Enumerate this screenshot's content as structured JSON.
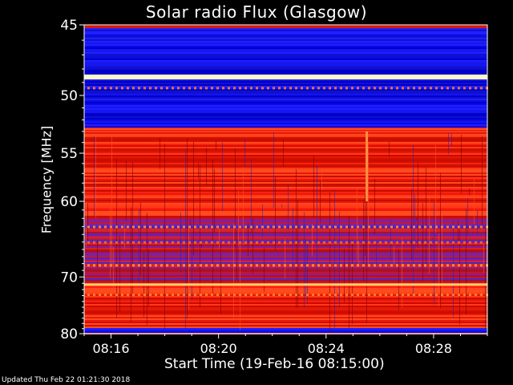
{
  "chart_data": {
    "type": "heatmap",
    "title": "Solar radio Flux (Glasgow)",
    "xlabel": "Start Time (19-Feb-16 08:15:00)",
    "ylabel": "Frequency [MHz]",
    "x_ticks": [
      "08:16",
      "08:20",
      "08:24",
      "08:28"
    ],
    "x_tick_minutes": [
      1,
      5,
      9,
      13
    ],
    "x_range_minutes": [
      0,
      15
    ],
    "y_ticks": [
      45,
      50,
      55,
      60,
      70,
      80
    ],
    "y_range": [
      45,
      80
    ],
    "y_scale": "reciprocal",
    "colormap": [
      "#000000",
      "#1010e0",
      "#4020a0",
      "#900000",
      "#e01010",
      "#ff3010",
      "#ff8020",
      "#ffff80"
    ],
    "bands": [
      {
        "from": 45.2,
        "to": 48.4,
        "level": "low"
      },
      {
        "from": 48.4,
        "to": 48.8,
        "level": "saturated"
      },
      {
        "from": 48.8,
        "to": 52.6,
        "level": "low"
      },
      {
        "from": 52.6,
        "to": 53.0,
        "level": "high"
      },
      {
        "from": 53.0,
        "to": 62.0,
        "level": "high"
      },
      {
        "from": 62.0,
        "to": 66.0,
        "level": "medium"
      },
      {
        "from": 66.0,
        "to": 71.0,
        "level": "medium"
      },
      {
        "from": 71.0,
        "to": 72.0,
        "level": "high"
      },
      {
        "from": 72.0,
        "to": 79.0,
        "level": "high"
      },
      {
        "from": 79.0,
        "to": 80.0,
        "level": "low"
      }
    ]
  },
  "footer": {
    "updated": "Updated Thu Feb 22 01:21:30 2018"
  }
}
